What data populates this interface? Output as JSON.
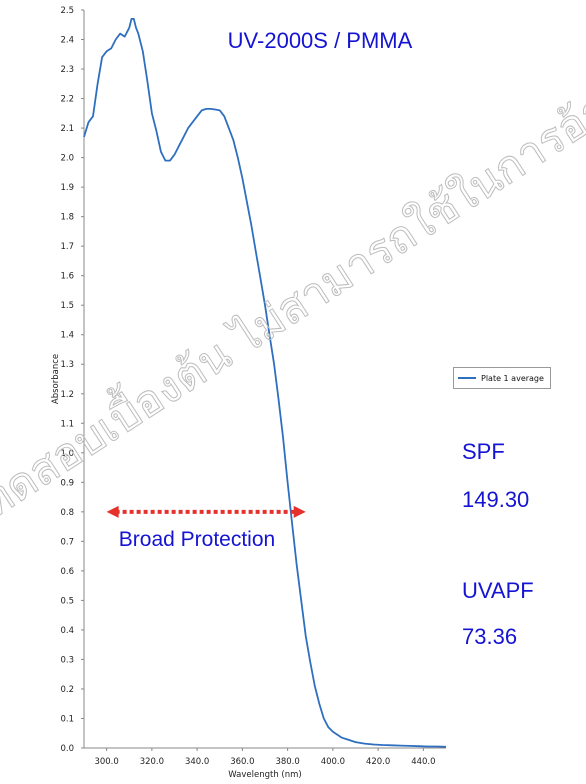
{
  "chart_data": {
    "type": "line",
    "title": "UV-2000S / PMMA",
    "xlabel": "Wavelength (nm)",
    "ylabel": "Absorbance",
    "xlim": [
      290,
      450
    ],
    "ylim": [
      0,
      2.5
    ],
    "x_ticks": [
      "300.0",
      "320.0",
      "340.0",
      "360.0",
      "380.0",
      "400.0",
      "420.0",
      "440.0"
    ],
    "y_ticks": [
      "0.0",
      "0.1",
      "0.2",
      "0.3",
      "0.4",
      "0.5",
      "0.6",
      "0.7",
      "0.8",
      "0.9",
      "1.0",
      "1.1",
      "1.2",
      "1.3",
      "1.4",
      "1.5",
      "1.6",
      "1.7",
      "1.8",
      "1.9",
      "2.0",
      "2.1",
      "2.2",
      "2.3",
      "2.4",
      "2.5"
    ],
    "grid": false,
    "legend_position": "right",
    "series": [
      {
        "name": "Plate 1 average",
        "color": "#2e6fc0",
        "x": [
          290,
          292,
          294,
          296,
          298,
          300,
          302,
          304,
          306,
          308,
          310,
          311,
          312,
          313,
          314,
          316,
          318,
          320,
          322,
          324,
          326,
          328,
          330,
          332,
          334,
          336,
          338,
          340,
          342,
          344,
          346,
          348,
          350,
          352,
          354,
          356,
          358,
          360,
          362,
          364,
          366,
          368,
          370,
          372,
          374,
          376,
          378,
          380,
          382,
          384,
          386,
          388,
          390,
          392,
          394,
          396,
          398,
          400,
          402,
          404,
          406,
          408,
          410,
          414,
          418,
          422,
          426,
          430,
          434,
          438,
          442,
          446,
          450
        ],
        "y": [
          2.07,
          2.12,
          2.14,
          2.25,
          2.34,
          2.36,
          2.37,
          2.4,
          2.42,
          2.41,
          2.44,
          2.47,
          2.47,
          2.44,
          2.42,
          2.36,
          2.26,
          2.15,
          2.09,
          2.02,
          1.99,
          1.99,
          2.01,
          2.04,
          2.07,
          2.1,
          2.12,
          2.14,
          2.16,
          2.165,
          2.165,
          2.163,
          2.16,
          2.14,
          2.1,
          2.06,
          2.0,
          1.93,
          1.85,
          1.77,
          1.68,
          1.59,
          1.5,
          1.4,
          1.3,
          1.18,
          1.05,
          0.9,
          0.76,
          0.62,
          0.5,
          0.38,
          0.29,
          0.21,
          0.15,
          0.1,
          0.07,
          0.055,
          0.045,
          0.035,
          0.03,
          0.025,
          0.02,
          0.015,
          0.012,
          0.01,
          0.009,
          0.008,
          0.007,
          0.006,
          0.005,
          0.005,
          0.004
        ]
      }
    ],
    "annotations": {
      "range_label": "Broad Protection",
      "arrow_from_x": 300,
      "arrow_to_x": 388,
      "arrow_y": 0.8,
      "arrow_color": "#e5312b"
    }
  },
  "stats": {
    "spf_label": "SPF",
    "spf_value": "149.30",
    "uvapf_label": "UVAPF",
    "uvapf_value": "73.36"
  },
  "watermark": "การทดสอบเบื้องต้น ไม่สามารถใช้ในการอ้างอิง"
}
